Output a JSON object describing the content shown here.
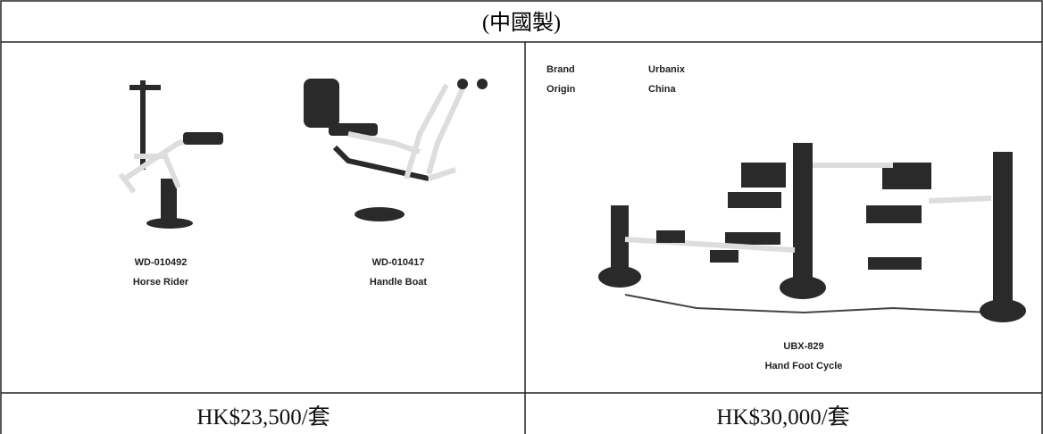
{
  "header": {
    "title": "(中國製)"
  },
  "left": {
    "products": [
      {
        "code": "WD-010492",
        "name": "Horse Rider"
      },
      {
        "code": "WD-010417",
        "name": "Handle Boat"
      }
    ],
    "price": "HK$23,500/套"
  },
  "right": {
    "specs": [
      {
        "label": "Brand",
        "value": "Urbanix"
      },
      {
        "label": "Origin",
        "value": "China"
      }
    ],
    "product": {
      "code": "UBX-829",
      "name": "Hand Foot Cycle"
    },
    "price": "HK$30,000/套"
  }
}
